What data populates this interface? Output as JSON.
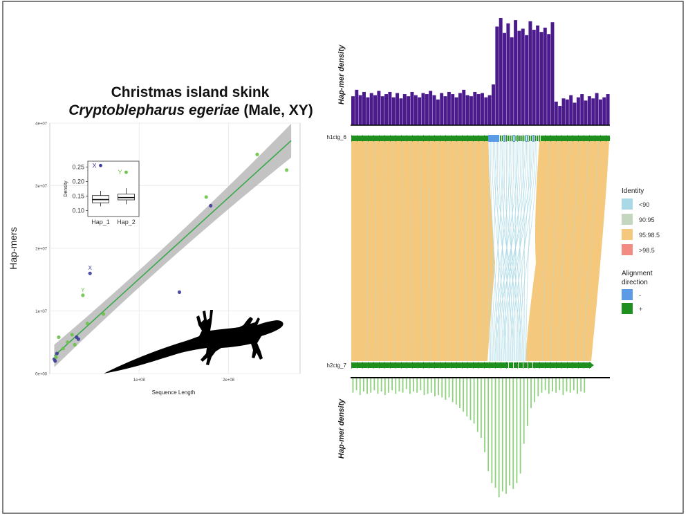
{
  "colors": {
    "purple": "#4b1a8c",
    "green_bar": "#8dd17c",
    "green_dir": "#1f8f1f",
    "blue_dir": "#5b9be6",
    "orange_fill": "#f4c97e",
    "light_blue": "#a9d9e6",
    "sage": "#c5d6c0",
    "salmon": "#f28b82",
    "scatter_blue": "#3b3b9a",
    "scatter_green": "#6cc24a",
    "fit_line": "#39a849",
    "ci_band": "#b8b8b8"
  },
  "chart_data": [
    {
      "type": "scatter",
      "title": "Christmas island skink",
      "subtitle_italic": "Cryptoblepharus egeriae",
      "subtitle_plain": " (Male, XY)",
      "xlabel": "Sequence Length",
      "ylabel": "Hap-mers",
      "xlim": [
        0,
        280000000
      ],
      "ylim": [
        0,
        40000000
      ],
      "x_ticks": [
        {
          "value": 100000000,
          "label": "1e+08"
        },
        {
          "value": 200000000,
          "label": "2e+08"
        }
      ],
      "y_ticks": [
        {
          "value": 0,
          "label": "0e+00"
        },
        {
          "value": 10000000,
          "label": "1e+07"
        },
        {
          "value": 20000000,
          "label": "2e+07"
        },
        {
          "value": 30000000,
          "label": "3e+07"
        },
        {
          "value": 40000000,
          "label": "4e+07"
        }
      ],
      "grid": true,
      "series": [
        {
          "color": "blue",
          "points": [
            [
              5000000,
              2300000
            ],
            [
              6000000,
              2000000
            ],
            [
              8000000,
              3200000
            ],
            [
              30000000,
              5800000
            ],
            [
              32000000,
              5500000
            ],
            [
              45000000,
              16000000
            ],
            [
              145000000,
              13000000
            ],
            [
              180000000,
              26800000
            ]
          ]
        },
        {
          "color": "green",
          "points": [
            [
              7000000,
              2600000
            ],
            [
              10000000,
              5800000
            ],
            [
              15000000,
              4000000
            ],
            [
              20000000,
              5000000
            ],
            [
              25000000,
              6200000
            ],
            [
              28000000,
              4600000
            ],
            [
              37000000,
              12500000
            ],
            [
              42000000,
              8000000
            ],
            [
              60000000,
              9500000
            ],
            [
              175000000,
              28200000
            ],
            [
              232000000,
              35000000
            ],
            [
              265000000,
              32500000
            ]
          ]
        }
      ],
      "point_labels": [
        {
          "text": "X",
          "x": 45000000,
          "y": 16000000,
          "color": "blue"
        },
        {
          "text": "Y",
          "x": 37000000,
          "y": 12500000,
          "color": "green"
        }
      ],
      "fit": {
        "x0": 5000000,
        "y0": 2800000,
        "x1": 270000000,
        "y1": 37200000,
        "ci_start": 1800000,
        "ci_mid": 600000,
        "ci_end": 2700000
      }
    },
    {
      "type": "box",
      "ylabel": "Density",
      "ylim": [
        0.08,
        0.27
      ],
      "y_ticks": [
        {
          "value": 0.1,
          "label": "0.10"
        },
        {
          "value": 0.15,
          "label": "0.15"
        },
        {
          "value": 0.2,
          "label": "0.20"
        },
        {
          "value": 0.25,
          "label": "0.25"
        }
      ],
      "categories": [
        "Hap_1",
        "Hap_2"
      ],
      "boxes": [
        {
          "min": 0.115,
          "q1": 0.127,
          "median": 0.138,
          "q3": 0.152,
          "max": 0.168
        },
        {
          "min": 0.122,
          "q1": 0.137,
          "median": 0.145,
          "q3": 0.157,
          "max": 0.177
        }
      ],
      "outliers": [
        {
          "cat": 0,
          "value": 0.255,
          "label": "X",
          "color": "blue"
        },
        {
          "cat": 1,
          "value": 0.232,
          "label": "Y",
          "color": "green"
        }
      ]
    },
    {
      "type": "bar",
      "ylabel": "Hap-mer density",
      "n_bins": 70,
      "values": [
        0.27,
        0.33,
        0.28,
        0.31,
        0.26,
        0.3,
        0.28,
        0.32,
        0.27,
        0.29,
        0.31,
        0.26,
        0.3,
        0.25,
        0.29,
        0.27,
        0.31,
        0.28,
        0.26,
        0.3,
        0.29,
        0.32,
        0.28,
        0.24,
        0.3,
        0.27,
        0.31,
        0.29,
        0.26,
        0.3,
        0.33,
        0.28,
        0.27,
        0.31,
        0.29,
        0.3,
        0.26,
        0.28,
        0.38,
        0.92,
        1.0,
        0.86,
        0.95,
        0.82,
        0.98,
        0.88,
        0.9,
        0.84,
        0.97,
        0.89,
        0.93,
        0.87,
        0.91,
        0.85,
        0.96,
        0.22,
        0.18,
        0.25,
        0.24,
        0.28,
        0.21,
        0.26,
        0.29,
        0.23,
        0.27,
        0.25,
        0.3,
        0.24,
        0.26,
        0.29
      ]
    },
    {
      "type": "synteny",
      "top_contig": "h1ctg_6",
      "bottom_contig": "h2ctg_7",
      "legend_identity_title": "Identity",
      "legend_identity": [
        {
          "label": "<90",
          "color": "#a9d9e6"
        },
        {
          "label": "90:95",
          "color": "#c5d6c0"
        },
        {
          "label": "95:98.5",
          "color": "#f4c97e"
        },
        {
          "label": ">98.5",
          "color": "#f28b82"
        }
      ],
      "legend_direction_title_1": "Alignment",
      "legend_direction_title_2": "direction",
      "legend_direction": [
        {
          "label": "-",
          "color": "#5b9be6"
        },
        {
          "label": "+",
          "color": "#1f8f1f"
        }
      ]
    },
    {
      "type": "bar",
      "ylabel": "Hap-mer density",
      "n_bins": 66,
      "values": [
        0.12,
        0.1,
        0.14,
        0.11,
        0.13,
        0.12,
        0.1,
        0.13,
        0.11,
        0.14,
        0.12,
        0.1,
        0.13,
        0.11,
        0.12,
        0.09,
        0.13,
        0.11,
        0.12,
        0.1,
        0.14,
        0.13,
        0.12,
        0.15,
        0.14,
        0.16,
        0.18,
        0.16,
        0.2,
        0.22,
        0.25,
        0.28,
        0.32,
        0.35,
        0.38,
        0.45,
        0.5,
        0.62,
        0.78,
        0.88,
        0.92,
        1.0,
        0.95,
        0.97,
        0.9,
        0.93,
        0.88,
        0.8,
        0.55,
        0.4,
        0.25,
        0.2,
        0.15,
        0.12,
        0.1,
        0.13,
        0.11,
        0.12,
        0.1,
        0.14,
        0.11,
        0.12,
        0.1,
        0.13,
        0.11,
        0.12
      ]
    }
  ]
}
